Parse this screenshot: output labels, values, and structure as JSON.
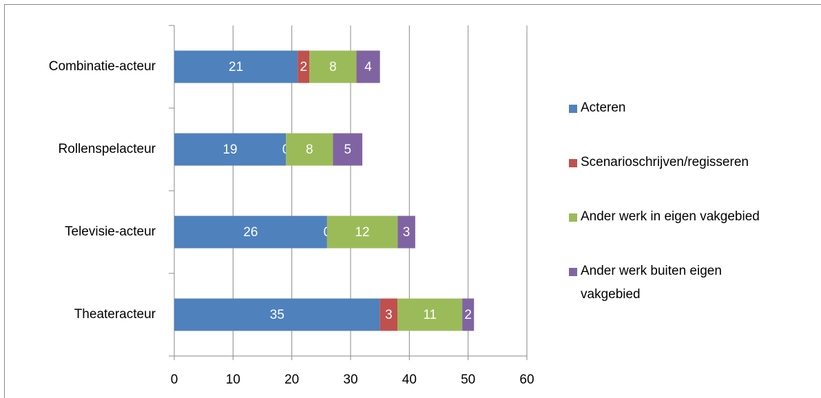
{
  "chart_data": {
    "type": "stacked-bar-horizontal",
    "categories": [
      "Combinatie-acteur",
      "Rollenspelacteur",
      "Televisie-acteur",
      "Theateracteur"
    ],
    "series": [
      {
        "name": "Acteren",
        "color": "#4f81bd",
        "values": [
          21,
          19,
          26,
          35
        ]
      },
      {
        "name": "Scenarioschrijven/regisseren",
        "color": "#c0504d",
        "values": [
          2,
          0,
          0,
          3
        ]
      },
      {
        "name": "Ander werk in eigen vakgebied",
        "color": "#9bbb59",
        "values": [
          8,
          8,
          12,
          11
        ]
      },
      {
        "name": "Ander werk buiten eigen vakgebied",
        "color": "#8064a2",
        "values": [
          4,
          5,
          3,
          2
        ]
      }
    ],
    "xlim": [
      0,
      60
    ],
    "xticks": [
      0,
      10,
      20,
      30,
      40,
      50,
      60
    ],
    "grid": true,
    "legend": "right"
  }
}
